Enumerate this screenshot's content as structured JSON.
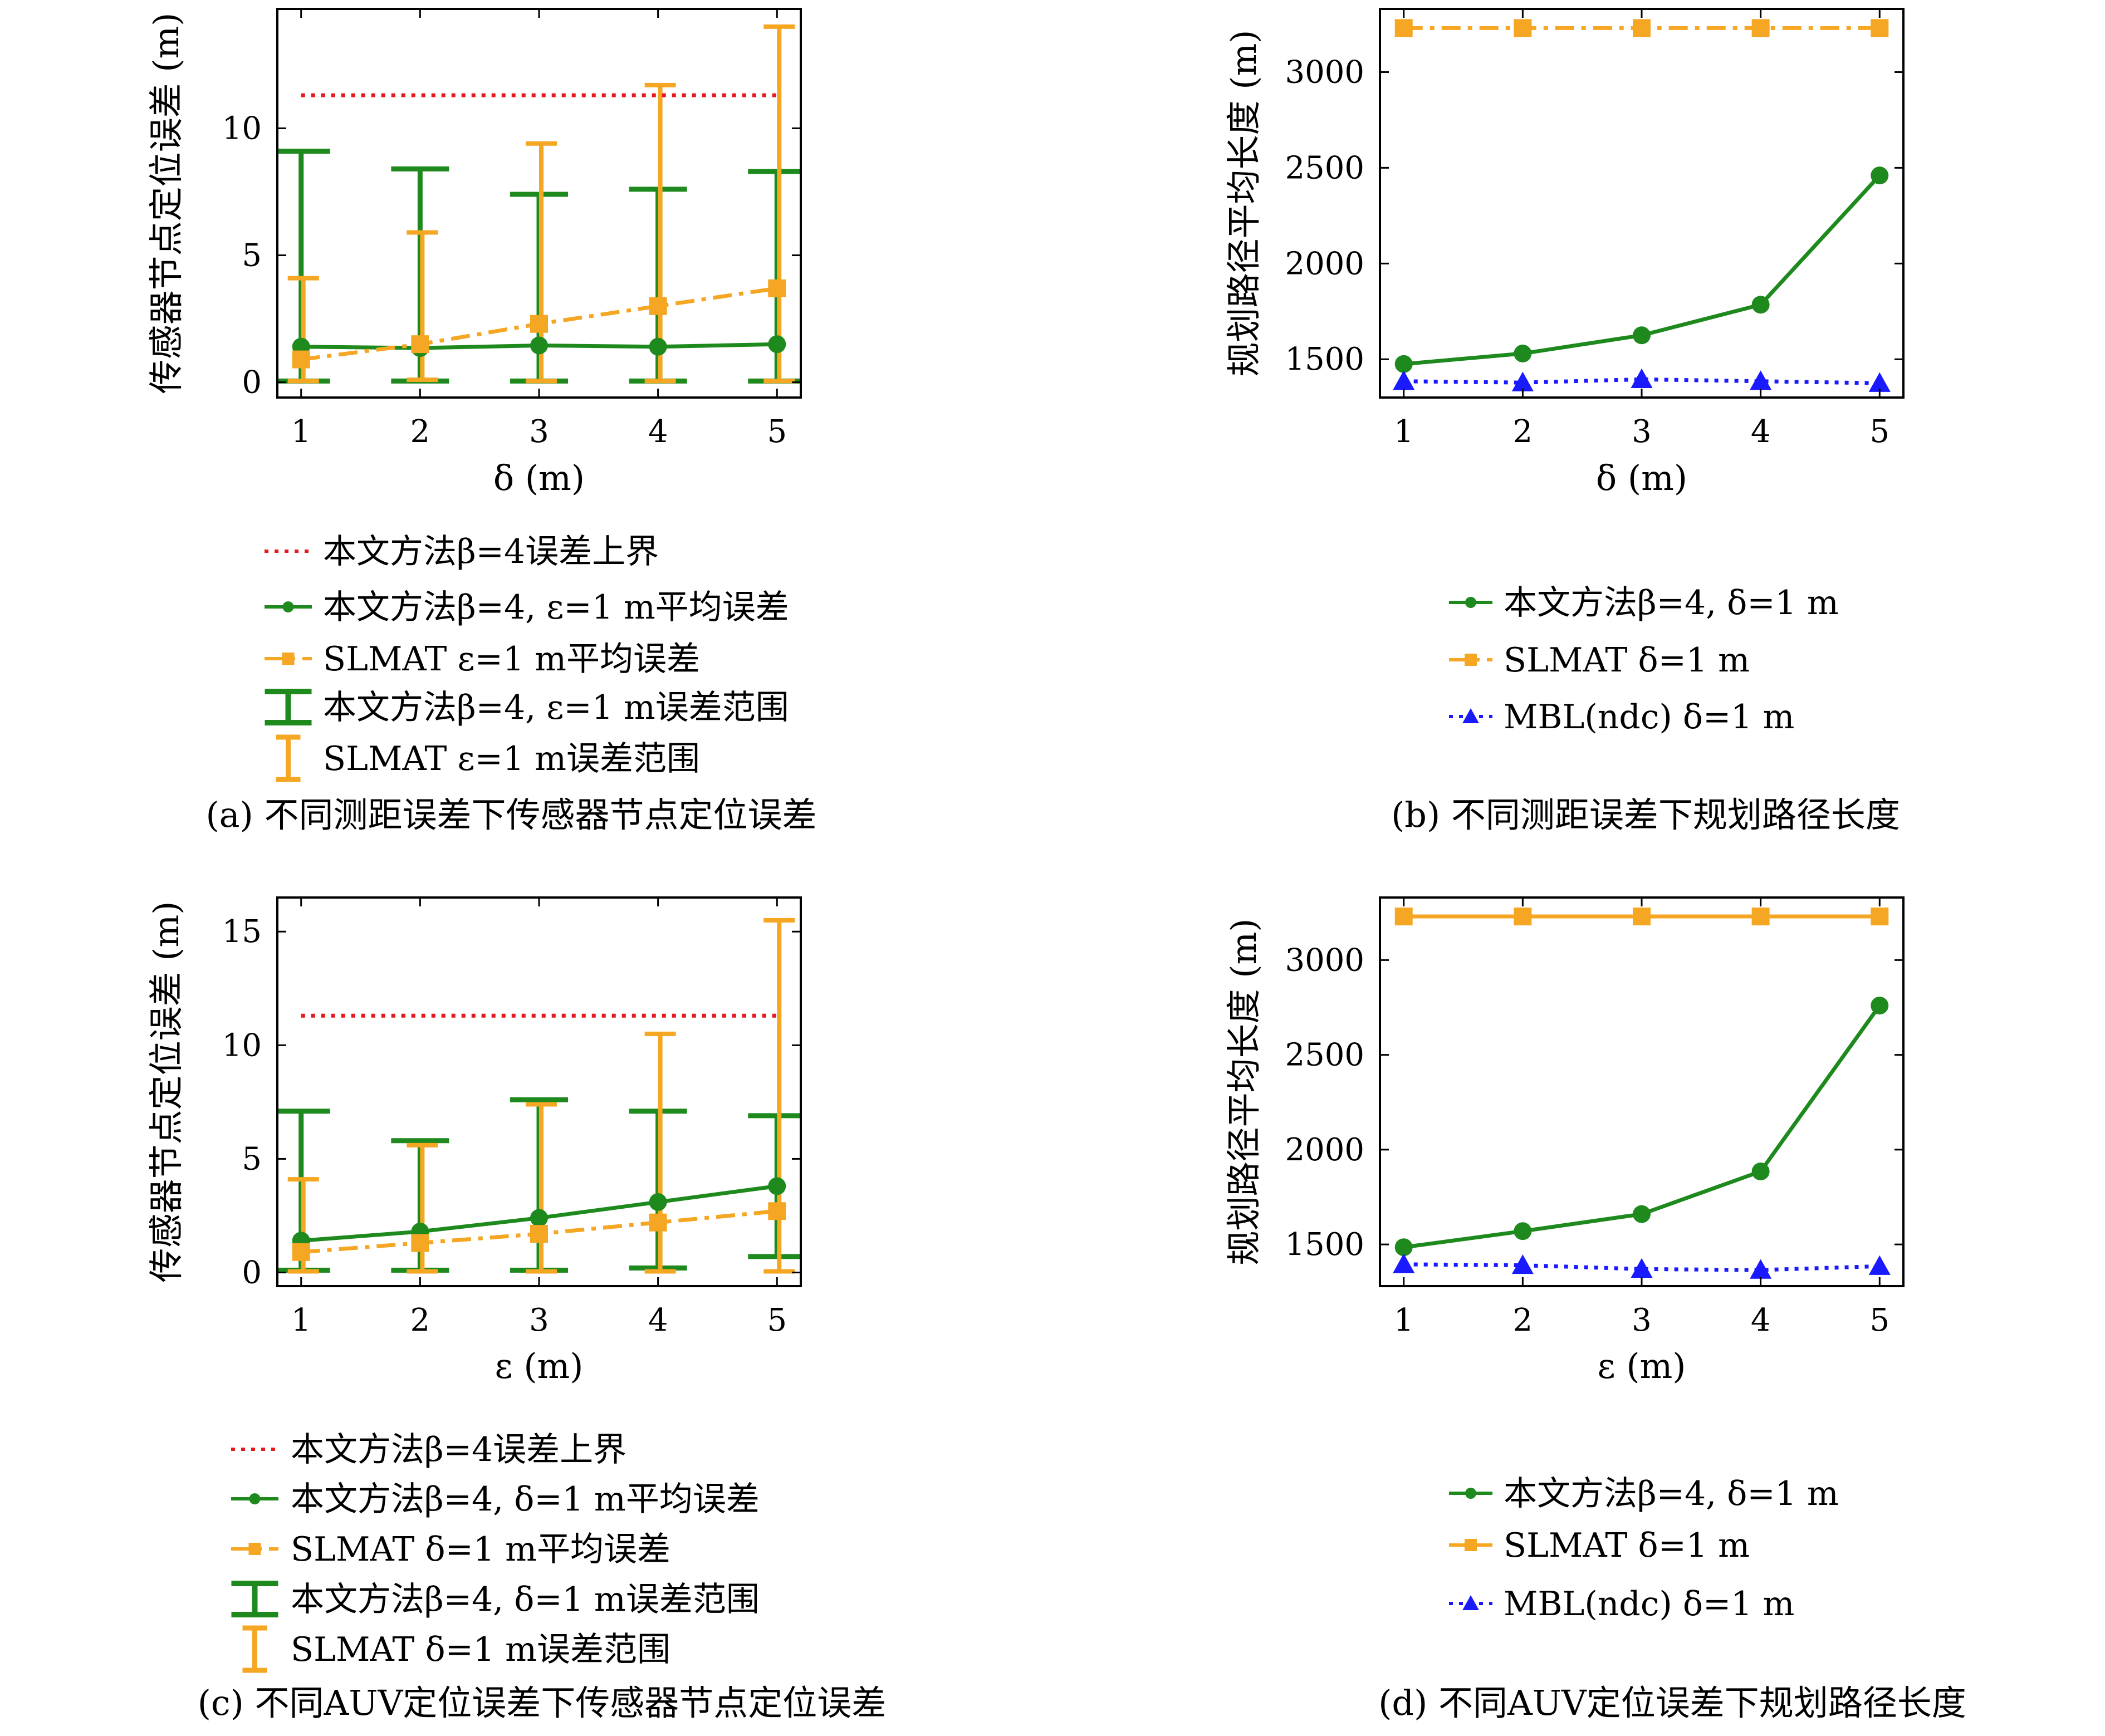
{
  "colors": {
    "green": "#1e8a1e",
    "orange": "#f5a623",
    "red": "#e8171c",
    "blue": "#1a1aff",
    "axis": "#000000"
  },
  "chart_data": [
    {
      "id": "a",
      "type": "line",
      "caption": "(a) 不同测距误差下传感器节点定位误差",
      "xlabel": "δ (m)",
      "ylabel": "传感器节点定位误差 (m)",
      "xlim": [
        0.8,
        5.2
      ],
      "ylim": [
        -0.6,
        14.7
      ],
      "xticks": [
        1,
        2,
        3,
        4,
        5
      ],
      "yticks": [
        0,
        5,
        10
      ],
      "grid": false,
      "legend_position": "below",
      "series": [
        {
          "name": "本文方法β=4误差上界",
          "style": "dotted",
          "color": "red",
          "marker": "none",
          "x": [
            1,
            5
          ],
          "values": [
            11.3,
            11.3
          ]
        },
        {
          "name": "本文方法β=4, ε=1 m平均误差",
          "style": "solid",
          "color": "green",
          "marker": "circle",
          "x": [
            1,
            2,
            3,
            4,
            5
          ],
          "values": [
            1.4,
            1.35,
            1.45,
            1.4,
            1.5
          ]
        },
        {
          "name": "SLMAT ε=1 m平均误差",
          "style": "dashdot",
          "color": "orange",
          "marker": "square",
          "x": [
            1,
            2,
            3,
            4,
            5
          ],
          "values": [
            0.9,
            1.5,
            2.3,
            3.0,
            3.7
          ]
        }
      ],
      "error_ranges": [
        {
          "name": "本文方法β=4, ε=1 m误差范围",
          "color": "green",
          "cap": "wide",
          "x": [
            1,
            2,
            3,
            4,
            5
          ],
          "low": [
            0.05,
            0.05,
            0.05,
            0.05,
            0.05
          ],
          "high": [
            9.1,
            8.4,
            7.4,
            7.6,
            8.3
          ]
        },
        {
          "name": "SLMAT ε=1 m误差范围",
          "color": "orange",
          "cap": "narrow",
          "x": [
            1,
            2,
            3,
            4,
            5
          ],
          "low": [
            0.05,
            0.1,
            0.05,
            0.05,
            0.05
          ],
          "high": [
            4.1,
            5.9,
            9.4,
            11.7,
            14.0
          ]
        }
      ]
    },
    {
      "id": "b",
      "type": "line",
      "caption": "(b) 不同测距误差下规划路径长度",
      "xlabel": "δ (m)",
      "ylabel": "规划路径平均长度 (m)",
      "xlim": [
        0.8,
        5.2
      ],
      "ylim": [
        1300,
        3330
      ],
      "xticks": [
        1,
        2,
        3,
        4,
        5
      ],
      "yticks": [
        1500,
        2000,
        2500,
        3000
      ],
      "grid": false,
      "legend_position": "below",
      "series": [
        {
          "name": "本文方法β=4, δ=1 m",
          "style": "solid",
          "color": "green",
          "marker": "circle",
          "x": [
            1,
            2,
            3,
            4,
            5
          ],
          "values": [
            1475,
            1530,
            1625,
            1785,
            2460
          ]
        },
        {
          "name": "SLMAT δ=1 m",
          "style": "dashdot",
          "color": "orange",
          "marker": "square",
          "x": [
            1,
            2,
            3,
            4,
            5
          ],
          "values": [
            3230,
            3230,
            3230,
            3230,
            3230
          ]
        },
        {
          "name": "MBL(ndc) δ=1 m",
          "style": "dotted",
          "color": "blue",
          "marker": "triangle",
          "x": [
            1,
            2,
            3,
            4,
            5
          ],
          "values": [
            1385,
            1378,
            1395,
            1385,
            1375
          ]
        }
      ]
    },
    {
      "id": "c",
      "type": "line",
      "caption": "(c) 不同AUV定位误差下传感器节点定位误差",
      "xlabel": "ε (m)",
      "ylabel": "传感器节点定位误差 (m)",
      "xlim": [
        0.8,
        5.2
      ],
      "ylim": [
        -0.6,
        16.5
      ],
      "xticks": [
        1,
        2,
        3,
        4,
        5
      ],
      "yticks": [
        0,
        5,
        10,
        15
      ],
      "grid": false,
      "legend_position": "below",
      "series": [
        {
          "name": "本文方法β=4误差上界",
          "style": "dotted",
          "color": "red",
          "marker": "none",
          "x": [
            1,
            5
          ],
          "values": [
            11.3,
            11.3
          ]
        },
        {
          "name": "本文方法β=4, δ=1 m平均误差",
          "style": "solid",
          "color": "green",
          "marker": "circle",
          "x": [
            1,
            2,
            3,
            4,
            5
          ],
          "values": [
            1.4,
            1.8,
            2.4,
            3.1,
            3.8
          ]
        },
        {
          "name": "SLMAT δ=1 m平均误差",
          "style": "dashdot",
          "color": "orange",
          "marker": "square",
          "x": [
            1,
            2,
            3,
            4,
            5
          ],
          "values": [
            0.9,
            1.3,
            1.7,
            2.2,
            2.7
          ]
        }
      ],
      "error_ranges": [
        {
          "name": "本文方法β=4, δ=1 m误差范围",
          "color": "green",
          "cap": "wide",
          "x": [
            1,
            2,
            3,
            4,
            5
          ],
          "low": [
            0.1,
            0.1,
            0.1,
            0.2,
            0.7
          ],
          "high": [
            7.1,
            5.8,
            7.6,
            7.1,
            6.9
          ]
        },
        {
          "name": "SLMAT δ=1 m误差范围",
          "color": "orange",
          "cap": "narrow",
          "x": [
            1,
            2,
            3,
            4,
            5
          ],
          "low": [
            0.05,
            0.05,
            0.05,
            0.05,
            0.05
          ],
          "high": [
            4.1,
            5.6,
            7.4,
            10.5,
            15.5
          ]
        }
      ]
    },
    {
      "id": "d",
      "type": "line",
      "caption": "(d) 不同AUV定位误差下规划路径长度",
      "xlabel": "ε (m)",
      "ylabel": "规划路径平均长度 (m)",
      "xlim": [
        0.8,
        5.2
      ],
      "ylim": [
        1280,
        3330
      ],
      "xticks": [
        1,
        2,
        3,
        4,
        5
      ],
      "yticks": [
        1500,
        2000,
        2500,
        3000
      ],
      "grid": false,
      "legend_position": "below",
      "series": [
        {
          "name": "本文方法β=4, δ=1 m",
          "style": "solid",
          "color": "green",
          "marker": "circle",
          "x": [
            1,
            2,
            3,
            4,
            5
          ],
          "values": [
            1485,
            1570,
            1660,
            1885,
            2760
          ]
        },
        {
          "name": "SLMAT δ=1 m",
          "style": "solid",
          "color": "orange",
          "marker": "square",
          "x": [
            1,
            2,
            3,
            4,
            5
          ],
          "values": [
            3230,
            3230,
            3230,
            3230,
            3230
          ]
        },
        {
          "name": "MBL(ndc) δ=1 m",
          "style": "dotted",
          "color": "blue",
          "marker": "triangle",
          "x": [
            1,
            2,
            3,
            4,
            5
          ],
          "values": [
            1395,
            1390,
            1370,
            1365,
            1385
          ]
        }
      ]
    }
  ]
}
